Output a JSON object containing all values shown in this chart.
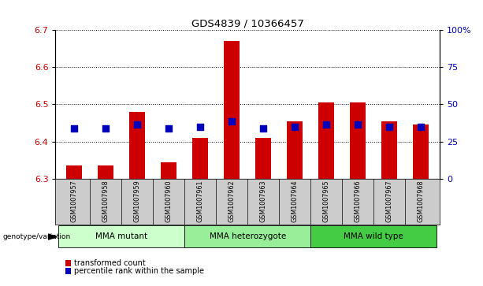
{
  "title": "GDS4839 / 10366457",
  "samples": [
    "GSM1007957",
    "GSM1007958",
    "GSM1007959",
    "GSM1007960",
    "GSM1007961",
    "GSM1007962",
    "GSM1007963",
    "GSM1007964",
    "GSM1007965",
    "GSM1007966",
    "GSM1007967",
    "GSM1007968"
  ],
  "transformed_count": [
    6.335,
    6.335,
    6.48,
    6.345,
    6.41,
    6.67,
    6.41,
    6.455,
    6.505,
    6.505,
    6.455,
    6.445
  ],
  "percentile_values": [
    6.435,
    6.435,
    6.445,
    6.435,
    6.44,
    6.455,
    6.435,
    6.44,
    6.445,
    6.445,
    6.44,
    6.44
  ],
  "y_min": 6.3,
  "y_max": 6.7,
  "y_ticks": [
    6.3,
    6.4,
    6.5,
    6.6,
    6.7
  ],
  "right_y_ticks": [
    0,
    25,
    50,
    75,
    100
  ],
  "right_y_labels": [
    "0",
    "25",
    "50",
    "75",
    "100%"
  ],
  "groups": [
    {
      "label": "MMA mutant",
      "start": 0,
      "end": 3,
      "color": "#ccffcc"
    },
    {
      "label": "MMA heterozygote",
      "start": 4,
      "end": 7,
      "color": "#99ee99"
    },
    {
      "label": "MMA wild type",
      "start": 8,
      "end": 11,
      "color": "#44cc44"
    }
  ],
  "bar_color": "#cc0000",
  "dot_color": "#0000bb",
  "bar_bottom": 6.3,
  "bar_width": 0.5,
  "dot_size": 28,
  "left_tick_color": "#cc0000",
  "right_tick_color": "#0000bb",
  "grid_color": "#000000",
  "sample_label_bg": "#cccccc",
  "legend_red_label": "transformed count",
  "legend_blue_label": "percentile rank within the sample",
  "genotype_label": "genotype/variation"
}
